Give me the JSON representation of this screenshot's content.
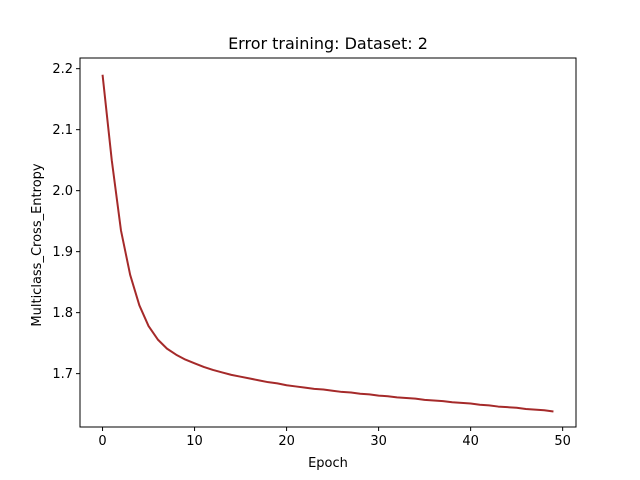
{
  "chart_data": {
    "type": "line",
    "title": "Error training: Dataset: 2",
    "xlabel": "Epoch",
    "ylabel": "Multiclass_Cross_Entropy",
    "xlim": [
      -2.45,
      51.45
    ],
    "ylim": [
      1.6125,
      2.2175
    ],
    "xticks": [
      0,
      10,
      20,
      30,
      40,
      50
    ],
    "yticks": [
      1.7,
      1.8,
      1.9,
      2.0,
      2.1,
      2.2
    ],
    "xtick_labels": [
      "0",
      "10",
      "20",
      "30",
      "40",
      "50"
    ],
    "ytick_labels": [
      "1.7",
      "1.8",
      "1.9",
      "2.0",
      "2.1",
      "2.2"
    ],
    "grid": false,
    "legend": null,
    "series": [
      {
        "color": "#a52a2a",
        "x": [
          0,
          1,
          2,
          3,
          4,
          5,
          6,
          7,
          8,
          9,
          10,
          11,
          12,
          13,
          14,
          15,
          16,
          17,
          18,
          19,
          20,
          21,
          22,
          23,
          24,
          25,
          26,
          27,
          28,
          29,
          30,
          31,
          32,
          33,
          34,
          35,
          36,
          37,
          38,
          39,
          40,
          41,
          42,
          43,
          44,
          45,
          46,
          47,
          48,
          49
        ],
        "y": [
          2.19,
          2.05,
          1.935,
          1.862,
          1.812,
          1.778,
          1.756,
          1.741,
          1.731,
          1.723,
          1.717,
          1.711,
          1.706,
          1.702,
          1.698,
          1.695,
          1.692,
          1.689,
          1.686,
          1.684,
          1.681,
          1.679,
          1.677,
          1.675,
          1.674,
          1.672,
          1.67,
          1.669,
          1.667,
          1.666,
          1.664,
          1.663,
          1.661,
          1.66,
          1.659,
          1.657,
          1.656,
          1.655,
          1.653,
          1.652,
          1.651,
          1.649,
          1.648,
          1.646,
          1.645,
          1.644,
          1.642,
          1.641,
          1.64,
          1.638
        ]
      }
    ]
  }
}
